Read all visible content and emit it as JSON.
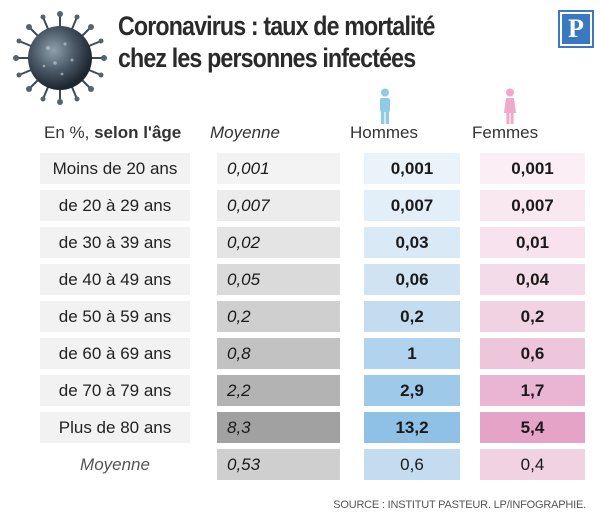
{
  "title": {
    "line1": "Coronavirus : taux de mortalité",
    "line2": "chez les personnes infectées"
  },
  "logo": {
    "text": "P",
    "color": "#3a78c2"
  },
  "icons": {
    "virus": "virus-illustration-icon",
    "men": "man-person-icon",
    "women": "woman-person-icon"
  },
  "colors": {
    "men_icon": "#8fcbe6",
    "women_icon": "#f0a9c8"
  },
  "chart_data": {
    "type": "table",
    "columns": {
      "age_prefix": "En %,",
      "age_rest": " selon l'âge",
      "average": "Moyenne",
      "men": "Hommes",
      "women": "Femmes"
    },
    "rows": [
      {
        "age": "Moins de 20 ans",
        "average": "0,001",
        "men": "0,001",
        "women": "0,001",
        "avg_bg": "#f3f3f3",
        "men_bg": "#eaf3fa",
        "women_bg": "#fbeef4"
      },
      {
        "age": "de 20 à 29 ans",
        "average": "0,007",
        "men": "0,007",
        "women": "0,007",
        "avg_bg": "#ececec",
        "men_bg": "#e2eef8",
        "women_bg": "#f9e8f0"
      },
      {
        "age": "de 30 à 39 ans",
        "average": "0,02",
        "men": "0,03",
        "women": "0,01",
        "avg_bg": "#e4e4e4",
        "men_bg": "#d9e9f6",
        "women_bg": "#f7e2ed"
      },
      {
        "age": "de 40 à 49 ans",
        "average": "0,05",
        "men": "0,06",
        "women": "0,04",
        "avg_bg": "#dadada",
        "men_bg": "#cfe3f3",
        "women_bg": "#f4dbe9"
      },
      {
        "age": "de 50 à 59 ans",
        "average": "0,2",
        "men": "0,2",
        "women": "0,2",
        "avg_bg": "#cfcfcf",
        "men_bg": "#c3dcf0",
        "women_bg": "#f1d2e3"
      },
      {
        "age": "de 60 à 69 ans",
        "average": "0,8",
        "men": "1",
        "women": "0,6",
        "avg_bg": "#c2c2c2",
        "men_bg": "#b2d3ed",
        "women_bg": "#edc6dc"
      },
      {
        "age": "de 70 à 79 ans",
        "average": "2,2",
        "men": "2,9",
        "women": "1,7",
        "avg_bg": "#b3b3b3",
        "men_bg": "#9fc9e9",
        "women_bg": "#e9b5d2"
      },
      {
        "age": "Plus de 80 ans",
        "average": "8,3",
        "men": "13,2",
        "women": "5,4",
        "avg_bg": "#a1a1a1",
        "men_bg": "#8fc0e6",
        "women_bg": "#e4a3c7"
      },
      {
        "age": "Moyenne",
        "average": "0,53",
        "men": "0,6",
        "women": "0,4",
        "avg_bg": "#cfcfcf",
        "men_bg": "#c3dcf0",
        "women_bg": "#f1d2e3"
      }
    ]
  },
  "source": "SOURCE : INSTITUT PASTEUR.  LP/INFOGRAPHIE."
}
